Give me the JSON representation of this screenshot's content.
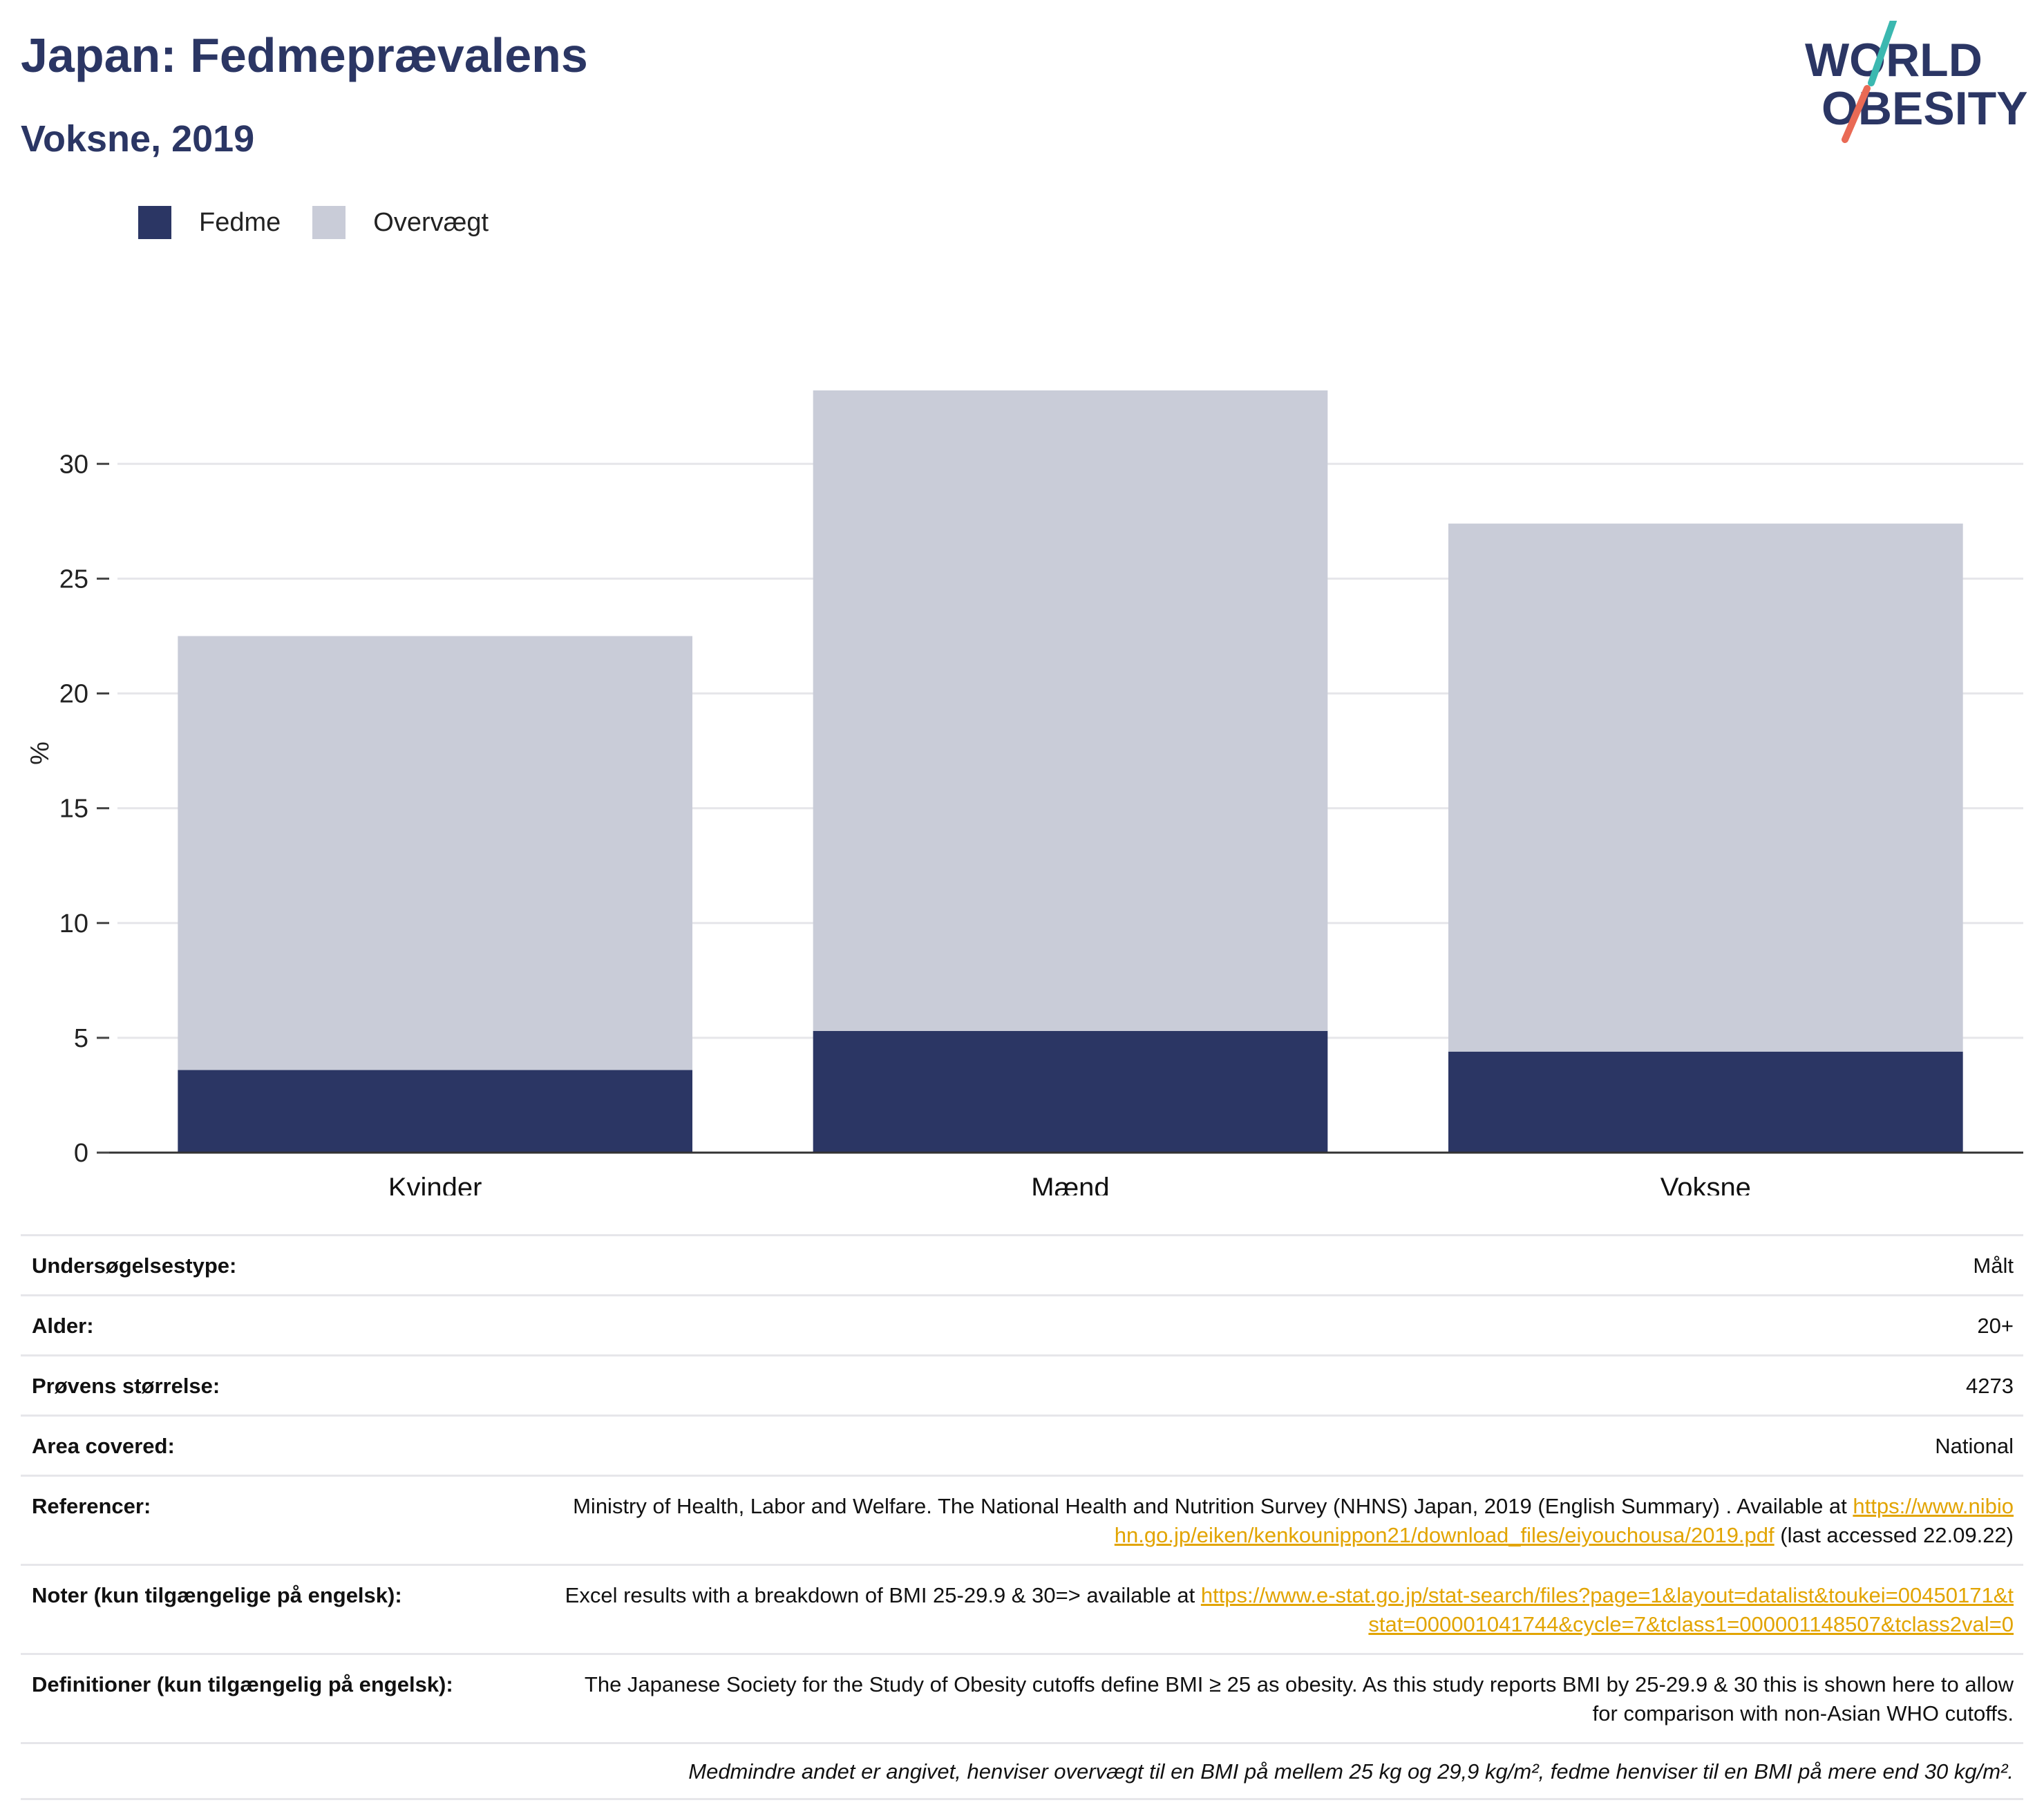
{
  "header": {
    "title": "Japan: Fedmeprævalens",
    "subtitle": "Voksne, 2019",
    "logo_line1": "WORLD",
    "logo_line2": "OBESITY"
  },
  "colors": {
    "fedme": "#2b3664",
    "overvaegt": "#c9ccd8",
    "title": "#2b3664",
    "link": "#e2a400",
    "logo_teal": "#3bb8b0",
    "logo_coral": "#e96a55"
  },
  "legend": [
    {
      "label": "Fedme",
      "color": "#2b3664"
    },
    {
      "label": "Overvægt",
      "color": "#c9ccd8"
    }
  ],
  "chart_data": {
    "type": "bar",
    "stacked": true,
    "categories": [
      "Kvinder",
      "Mænd",
      "Voksne"
    ],
    "series": [
      {
        "name": "Fedme",
        "values": [
          3.6,
          5.3,
          4.4
        ]
      },
      {
        "name": "Overvægt",
        "values": [
          18.9,
          27.9,
          23.0
        ]
      }
    ],
    "totals": [
      22.5,
      33.2,
      27.4
    ],
    "ylabel": "%",
    "ylim": [
      0,
      33.5
    ],
    "yticks": [
      0,
      5,
      10,
      15,
      20,
      25,
      30
    ],
    "grid": true,
    "legend_position": "top-left"
  },
  "info_table": [
    {
      "key": "Undersøgelsestype:",
      "value": "Målt"
    },
    {
      "key": "Alder:",
      "value": "20+"
    },
    {
      "key": "Prøvens størrelse:",
      "value": "4273"
    },
    {
      "key": "Area covered:",
      "value": "National"
    },
    {
      "key": "Referencer:",
      "text": "Ministry of Health, Labor and Welfare. The National Health and Nutrition Survey (NHNS) Japan, 2019 (English Summary) . Available at",
      "link": "https://www.nibiohn.go.jp/eiken/kenkounippon21/download_files/eiyouchousa/2019.pdf",
      "after": "(last accessed 22.09.22)"
    },
    {
      "key": "Noter (kun tilgængelige på engelsk):",
      "text": "Excel results with a breakdown of BMI 25-29.9 & 30=> available at",
      "link": "https://www.e-stat.go.jp/stat-search/files?page=1&layout=datalist&toukei=00450171&tstat=000001041744&cycle=7&tclass1=000001148507&tclass2val=0",
      "after": ""
    },
    {
      "key": "Definitioner (kun tilgængelig på engelsk):",
      "value": "The Japanese Society for the Study of Obesity cutoffs define BMI ≥ 25 as obesity. As this study reports BMI by 25-29.9 & 30 this is shown here to allow for comparison with non-Asian WHO cutoffs."
    }
  ],
  "footnote": "Medmindre andet er angivet, henviser overvægt til en BMI på mellem 25 kg og 29,9 kg/m², fedme henviser til en BMI på mere end 30 kg/m²."
}
